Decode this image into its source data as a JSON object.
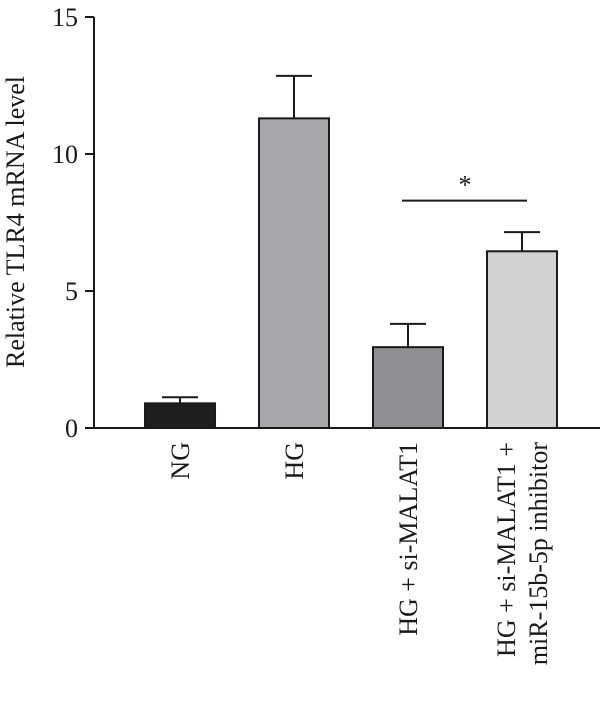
{
  "chart_data": {
    "type": "bar",
    "ylabel": "Relative TLR4 mRNA level",
    "ylim": [
      0,
      15
    ],
    "yticks": [
      0,
      5,
      10,
      15
    ],
    "categories": [
      {
        "lines": [
          "NG"
        ]
      },
      {
        "lines": [
          "HG"
        ]
      },
      {
        "lines": [
          "HG + si-MALAT1"
        ]
      },
      {
        "lines": [
          "HG + si-MALAT1 +",
          "miR-15b-5p inhibitor"
        ]
      }
    ],
    "values": [
      0.9,
      11.3,
      2.95,
      6.45
    ],
    "errors": [
      0.22,
      1.55,
      0.85,
      0.7
    ],
    "colors": [
      "#1f1d1e",
      "#a7a8ab",
      "#8f9093",
      "#d1d2d4"
    ],
    "significance": {
      "between": [
        2,
        3
      ],
      "label": "*",
      "y": 8.3
    },
    "grid": false,
    "legend": "none"
  }
}
